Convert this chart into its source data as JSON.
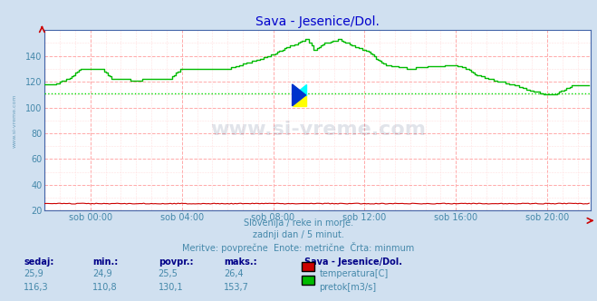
{
  "title": "Sava - Jesenice/Dol.",
  "title_color": "#0000cc",
  "bg_color": "#d0e0f0",
  "plot_bg_color": "#ffffff",
  "grid_major_color": "#ffaaaa",
  "grid_minor_color": "#ffe0e0",
  "tick_color": "#4488aa",
  "border_color": "#4466aa",
  "ylim": [
    20,
    160
  ],
  "xlim": [
    0,
    287
  ],
  "yticks": [
    20,
    40,
    60,
    80,
    100,
    120,
    140
  ],
  "xtick_positions": [
    24,
    72,
    120,
    168,
    216,
    264
  ],
  "xtick_labels": [
    "sob 00:00",
    "sob 04:00",
    "sob 08:00",
    "sob 12:00",
    "sob 16:00",
    "sob 20:00"
  ],
  "temp_color": "#cc0000",
  "temp_value": 25.5,
  "flow_color": "#00bb00",
  "flow_min_color": "#00dd00",
  "flow_min_value": 110.8,
  "watermark_text": "www.si-vreme.com",
  "watermark_color": "#1a3060",
  "watermark_alpha": 0.13,
  "left_label": "www.si-vreme.com",
  "left_label_color": "#4488aa",
  "footer_line1": "Slovenija / reke in morje.",
  "footer_line2": "zadnji dan / 5 minut.",
  "footer_line3": "Meritve: povprečne  Enote: metrične  Črta: minmum",
  "footer_color": "#4488aa",
  "legend_title": "Sava - Jesenice/Dol.",
  "legend_items": [
    "temperatura[C]",
    "pretok[m3/s]"
  ],
  "legend_colors": [
    "#cc0000",
    "#00bb00"
  ],
  "stats_headers": [
    "sedaj:",
    "min.:",
    "povpr.:",
    "maks.:"
  ],
  "stats_temp": [
    "25,9",
    "24,9",
    "25,5",
    "26,4"
  ],
  "stats_flow": [
    "116,3",
    "110,8",
    "130,1",
    "153,7"
  ],
  "stats_color": "#4488aa",
  "stats_bold_color": "#000088",
  "arrow_color": "#cc0000"
}
